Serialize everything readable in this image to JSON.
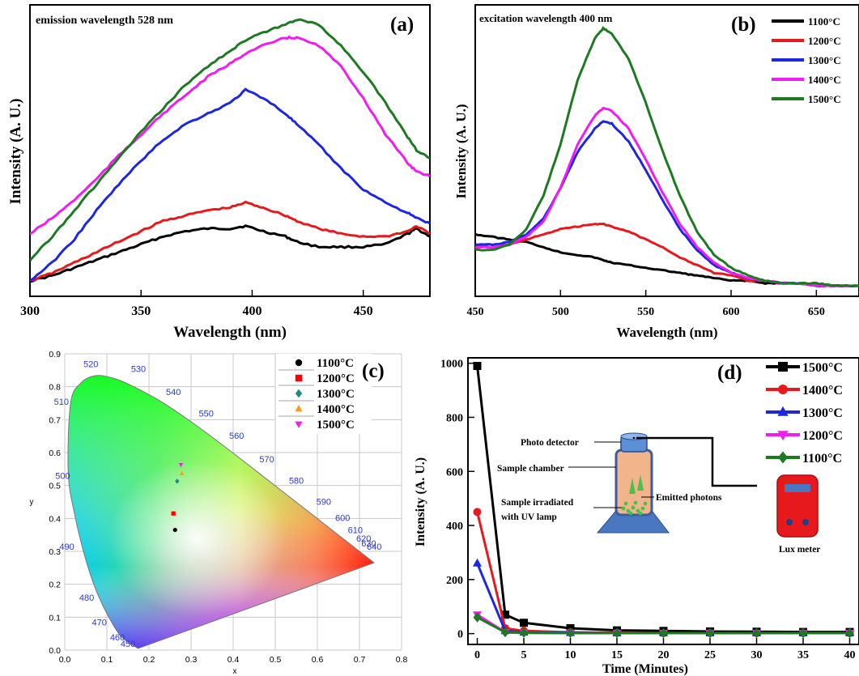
{
  "chart_data": [
    {
      "id": "a",
      "type": "line",
      "panel_label": "(a)",
      "annotation": "emission wavelength 528 nm",
      "xlabel": "Wavelength (nm)",
      "ylabel": "Intensity (A. U.)",
      "xlim": [
        300,
        480
      ],
      "ylim": [
        0,
        1
      ],
      "xticks": [
        300,
        350,
        400,
        450
      ],
      "x": [
        300,
        310,
        320,
        330,
        340,
        350,
        360,
        370,
        380,
        390,
        397,
        405,
        415,
        420,
        430,
        440,
        450,
        460,
        470,
        474,
        480
      ],
      "series": [
        {
          "name": "1100°C",
          "color": "#000000",
          "values": [
            0.0,
            0.02,
            0.05,
            0.08,
            0.11,
            0.14,
            0.17,
            0.19,
            0.2,
            0.2,
            0.21,
            0.19,
            0.17,
            0.15,
            0.13,
            0.13,
            0.13,
            0.14,
            0.18,
            0.2,
            0.17
          ]
        },
        {
          "name": "1200°C",
          "color": "#e8191c",
          "values": [
            0.0,
            0.03,
            0.07,
            0.11,
            0.15,
            0.19,
            0.23,
            0.25,
            0.27,
            0.28,
            0.3,
            0.28,
            0.25,
            0.23,
            0.2,
            0.18,
            0.17,
            0.17,
            0.19,
            0.21,
            0.18
          ]
        },
        {
          "name": "1300°C",
          "color": "#1f26e0",
          "values": [
            0.0,
            0.07,
            0.16,
            0.27,
            0.37,
            0.46,
            0.54,
            0.6,
            0.64,
            0.68,
            0.73,
            0.7,
            0.64,
            0.6,
            0.52,
            0.43,
            0.35,
            0.3,
            0.26,
            0.24,
            0.22
          ]
        },
        {
          "name": "1400°C",
          "color": "#f01cf0",
          "values": [
            0.18,
            0.24,
            0.31,
            0.39,
            0.48,
            0.56,
            0.64,
            0.71,
            0.78,
            0.83,
            0.87,
            0.9,
            0.93,
            0.93,
            0.9,
            0.82,
            0.7,
            0.56,
            0.45,
            0.42,
            0.4
          ]
        },
        {
          "name": "1500°C",
          "color": "#1d7a22",
          "values": [
            0.08,
            0.17,
            0.27,
            0.37,
            0.47,
            0.57,
            0.66,
            0.75,
            0.82,
            0.88,
            0.92,
            0.95,
            0.98,
            1.0,
            0.98,
            0.9,
            0.8,
            0.68,
            0.55,
            0.5,
            0.47
          ]
        }
      ]
    },
    {
      "id": "b",
      "type": "line",
      "panel_label": "(b)",
      "annotation": "excitation wavelength 400 nm",
      "xlabel": "Wavelength (nm)",
      "ylabel": "Intensity (A. U.)",
      "xlim": [
        450,
        675
      ],
      "ylim": [
        0,
        1
      ],
      "xticks": [
        450,
        500,
        550,
        600,
        650
      ],
      "x": [
        450,
        460,
        470,
        480,
        490,
        500,
        510,
        520,
        525,
        530,
        540,
        550,
        560,
        570,
        580,
        590,
        600,
        610,
        620,
        630,
        640,
        650,
        660,
        675
      ],
      "series": [
        {
          "name": "1100°C",
          "color": "#000000",
          "values": [
            0.2,
            0.19,
            0.18,
            0.17,
            0.15,
            0.13,
            0.12,
            0.11,
            0.1,
            0.09,
            0.08,
            0.07,
            0.06,
            0.05,
            0.04,
            0.03,
            0.02,
            0.02,
            0.01,
            0.01,
            0.01,
            0.0,
            0.0,
            0.0
          ]
        },
        {
          "name": "1200°C",
          "color": "#e8191c",
          "values": [
            0.16,
            0.16,
            0.16,
            0.18,
            0.2,
            0.22,
            0.23,
            0.24,
            0.24,
            0.23,
            0.21,
            0.18,
            0.15,
            0.11,
            0.08,
            0.05,
            0.04,
            0.02,
            0.02,
            0.01,
            0.01,
            0.0,
            0.0,
            0.0
          ]
        },
        {
          "name": "1300°C",
          "color": "#1f26e0",
          "values": [
            0.16,
            0.16,
            0.17,
            0.2,
            0.26,
            0.38,
            0.52,
            0.61,
            0.64,
            0.63,
            0.56,
            0.45,
            0.33,
            0.22,
            0.14,
            0.08,
            0.05,
            0.03,
            0.02,
            0.01,
            0.01,
            0.0,
            0.0,
            0.0
          ]
        },
        {
          "name": "1400°C",
          "color": "#f01cf0",
          "values": [
            0.15,
            0.15,
            0.16,
            0.19,
            0.25,
            0.38,
            0.55,
            0.66,
            0.69,
            0.68,
            0.61,
            0.49,
            0.36,
            0.24,
            0.15,
            0.09,
            0.05,
            0.03,
            0.02,
            0.01,
            0.01,
            0.0,
            0.0,
            0.0
          ]
        },
        {
          "name": "1500°C",
          "color": "#1d7a22",
          "values": [
            0.14,
            0.14,
            0.16,
            0.22,
            0.35,
            0.55,
            0.8,
            0.96,
            1.0,
            0.98,
            0.88,
            0.71,
            0.52,
            0.35,
            0.21,
            0.12,
            0.07,
            0.04,
            0.02,
            0.01,
            0.01,
            0.01,
            0.0,
            0.0
          ]
        }
      ]
    },
    {
      "id": "c",
      "type": "scatter",
      "panel_label": "(c)",
      "xlabel": "x",
      "ylabel": "y",
      "xlim": [
        0.0,
        0.8
      ],
      "ylim": [
        0.0,
        0.9
      ],
      "xticks": [
        0.0,
        0.1,
        0.2,
        0.3,
        0.4,
        0.5,
        0.6,
        0.7,
        0.8
      ],
      "yticks": [
        0.0,
        0.1,
        0.2,
        0.3,
        0.4,
        0.5,
        0.6,
        0.7,
        0.8,
        0.9
      ],
      "grid": true,
      "spectral_locus_labels": [
        "450",
        "460",
        "470",
        "480",
        "490",
        "500",
        "510",
        "520",
        "530",
        "540",
        "550",
        "560",
        "570",
        "580",
        "590",
        "600",
        "610",
        "620",
        "630",
        "640"
      ],
      "points": [
        {
          "name": "1100°C",
          "x": 0.262,
          "y": 0.365,
          "color": "#000000",
          "marker": "circle"
        },
        {
          "name": "1200°C",
          "x": 0.258,
          "y": 0.415,
          "color": "#ff0000",
          "marker": "square"
        },
        {
          "name": "1300°C",
          "x": 0.267,
          "y": 0.513,
          "color": "#1b8a8a",
          "marker": "diamond"
        },
        {
          "name": "1400°C",
          "x": 0.278,
          "y": 0.537,
          "color": "#ff9a1a",
          "marker": "triangle-up"
        },
        {
          "name": "1500°C",
          "x": 0.276,
          "y": 0.563,
          "color": "#ee22ee",
          "marker": "triangle-down"
        }
      ]
    },
    {
      "id": "d",
      "type": "line",
      "panel_label": "(d)",
      "xlabel": "Time (Minutes)",
      "ylabel": "Intensity (A. U.)",
      "xlim": [
        -1,
        41
      ],
      "ylim": [
        -40,
        1020
      ],
      "xticks": [
        0,
        5,
        10,
        15,
        20,
        25,
        30,
        35,
        40
      ],
      "yticks": [
        0,
        200,
        400,
        600,
        800,
        1000
      ],
      "x": [
        0,
        3,
        5,
        10,
        15,
        20,
        25,
        30,
        35,
        40
      ],
      "series": [
        {
          "name": "1500°C",
          "color": "#000000",
          "marker": "square",
          "values": [
            990,
            70,
            40,
            20,
            12,
            10,
            8,
            7,
            6,
            6
          ]
        },
        {
          "name": "1400°C",
          "color": "#e8191c",
          "marker": "circle",
          "values": [
            450,
            20,
            10,
            5,
            3,
            2,
            2,
            2,
            2,
            2
          ]
        },
        {
          "name": "1300°C",
          "color": "#1f26e0",
          "marker": "triangle-up",
          "values": [
            260,
            10,
            5,
            3,
            2,
            2,
            2,
            2,
            2,
            2
          ]
        },
        {
          "name": "1200°C",
          "color": "#f01cf0",
          "marker": "triangle-down",
          "values": [
            70,
            5,
            3,
            2,
            2,
            2,
            2,
            2,
            2,
            2
          ]
        },
        {
          "name": "1100°C",
          "color": "#1d7a22",
          "marker": "diamond",
          "values": [
            60,
            5,
            3,
            2,
            2,
            2,
            2,
            2,
            2,
            2
          ]
        }
      ],
      "inset_labels": {
        "photo_detector": "Photo detector",
        "sample_chamber": "Sample chamber",
        "sample_irradiated_line1": "Sample irradiated",
        "sample_irradiated_line2": "with UV lamp",
        "emitted_photons": "Emitted photons",
        "lux_meter": "Lux meter"
      }
    }
  ]
}
